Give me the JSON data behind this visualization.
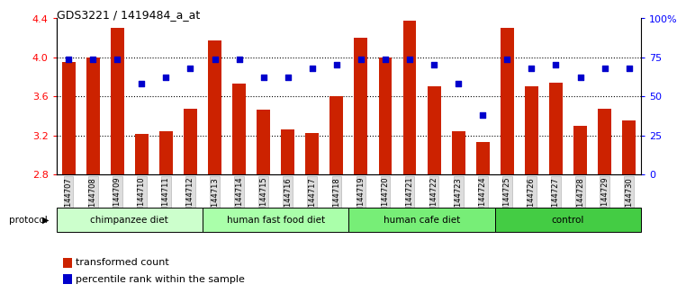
{
  "title": "GDS3221 / 1419484_a_at",
  "samples": [
    "GSM144707",
    "GSM144708",
    "GSM144709",
    "GSM144710",
    "GSM144711",
    "GSM144712",
    "GSM144713",
    "GSM144714",
    "GSM144715",
    "GSM144716",
    "GSM144717",
    "GSM144718",
    "GSM144719",
    "GSM144720",
    "GSM144721",
    "GSM144722",
    "GSM144723",
    "GSM144724",
    "GSM144725",
    "GSM144726",
    "GSM144727",
    "GSM144728",
    "GSM144729",
    "GSM144730"
  ],
  "bar_values": [
    3.95,
    4.0,
    4.3,
    3.21,
    3.24,
    3.47,
    4.17,
    3.73,
    3.46,
    3.26,
    3.22,
    3.6,
    4.2,
    4.0,
    4.38,
    3.7,
    3.24,
    3.13,
    4.3,
    3.7,
    3.74,
    3.3,
    3.47,
    3.35
  ],
  "percentile_values": [
    74,
    74,
    74,
    58,
    62,
    68,
    74,
    74,
    62,
    62,
    68,
    70,
    74,
    74,
    74,
    70,
    58,
    38,
    74,
    68,
    70,
    62,
    68,
    68
  ],
  "groups": [
    {
      "label": "chimpanzee diet",
      "start": 0,
      "end": 6,
      "color": "#ccffcc"
    },
    {
      "label": "human fast food diet",
      "start": 6,
      "end": 12,
      "color": "#aaffaa"
    },
    {
      "label": "human cafe diet",
      "start": 12,
      "end": 18,
      "color": "#77ee77"
    },
    {
      "label": "control",
      "start": 18,
      "end": 24,
      "color": "#44cc44"
    }
  ],
  "bar_color": "#cc2200",
  "dot_color": "#0000cc",
  "ylim_left": [
    2.8,
    4.4
  ],
  "ylim_right": [
    0,
    100
  ],
  "yticks_left": [
    2.8,
    3.2,
    3.6,
    4.0,
    4.4
  ],
  "yticks_right": [
    0,
    25,
    50,
    75,
    100
  ],
  "ytick_labels_right": [
    "0",
    "25",
    "50",
    "75",
    "100%"
  ],
  "grid_values": [
    3.2,
    3.6,
    4.0
  ],
  "background_color": "#ffffff",
  "plot_bg_color": "#ffffff",
  "legend_items": [
    {
      "label": "transformed count",
      "color": "#cc2200"
    },
    {
      "label": "percentile rank within the sample",
      "color": "#0000cc"
    }
  ]
}
